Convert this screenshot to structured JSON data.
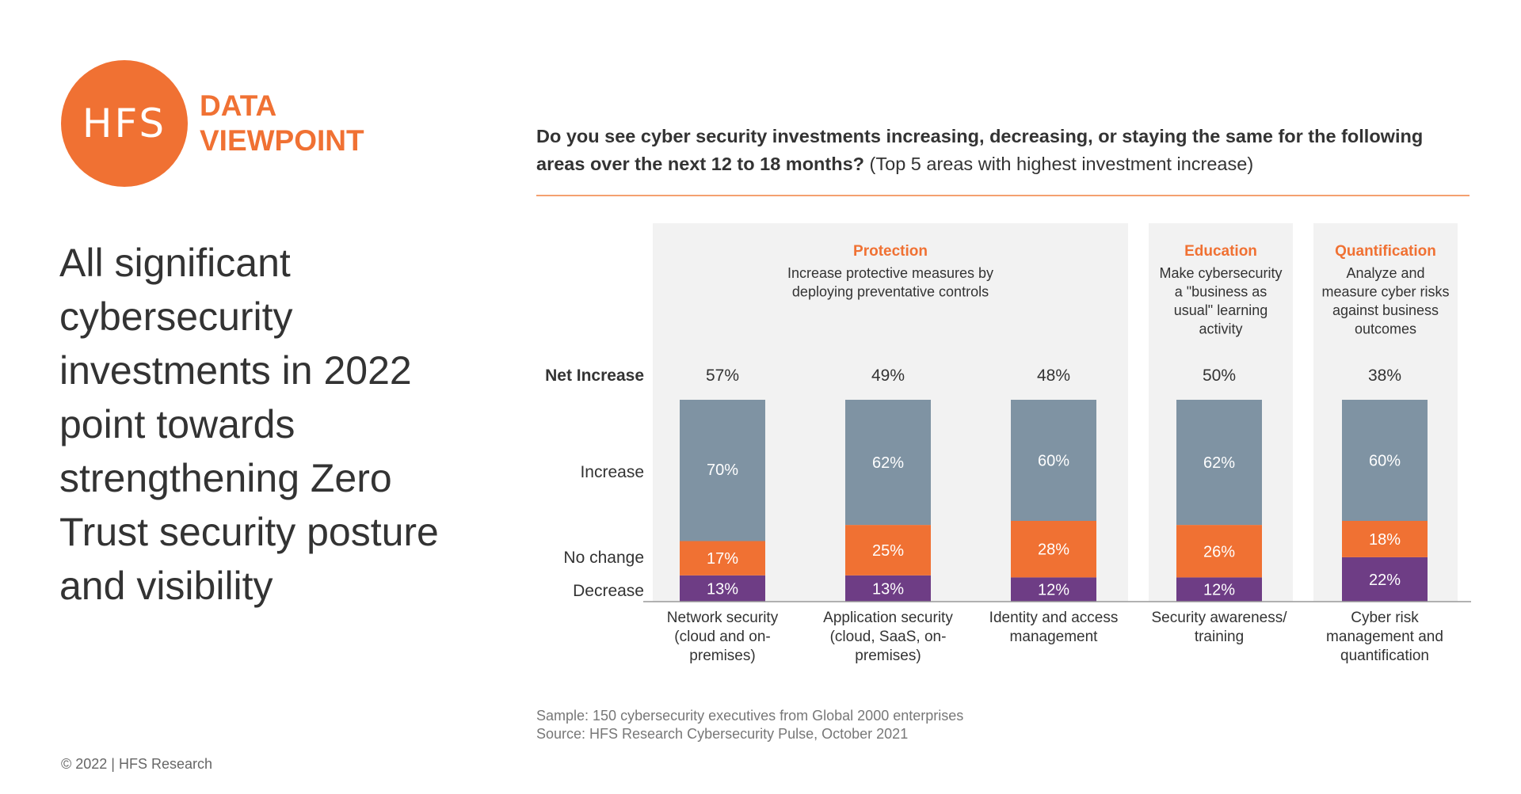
{
  "logo": {
    "mark": "HFS",
    "line1": "DATA",
    "line2": "VIEWPOINT"
  },
  "headline": "All significant cybersecurity investments in 2022 point towards strengthening Zero Trust security posture and visibility",
  "copyright": "© 2022 | HFS Research",
  "question": {
    "bold": "Do you see cyber security investments increasing, decreasing, or staying the same for the following areas over the next 12 to 18 months?",
    "normal": "(Top 5 areas with highest investment increase)"
  },
  "notes": {
    "sample": "Sample: 150 cybersecurity executives from Global 2000 enterprises",
    "source": "Source: HFS Research Cybersecurity Pulse, October 2021"
  },
  "colors": {
    "accent": "#f07133",
    "increase": "#7f93a3",
    "no_change": "#f07133",
    "decrease": "#6e3d85",
    "panel": "#f2f2f2"
  },
  "chart_data": {
    "type": "bar",
    "stacked": true,
    "categories": [
      "Network security (cloud and on-premises)",
      "Application security (cloud, SaaS, on-premises)",
      "Identity and access management",
      "Security awareness/ training",
      "Cyber risk management and quantification"
    ],
    "category_lines": [
      [
        "Network security",
        "(cloud and on-",
        "premises)"
      ],
      [
        "Application security",
        "(cloud, SaaS, on-",
        "premises)"
      ],
      [
        "Identity and access",
        "management"
      ],
      [
        "Security awareness/",
        "training"
      ],
      [
        "Cyber risk",
        "management and",
        "quantification"
      ]
    ],
    "series": [
      {
        "name": "Decrease",
        "values": [
          13,
          13,
          12,
          12,
          22
        ],
        "labels": [
          "13%",
          "13%",
          "12%",
          "12%",
          "22%"
        ]
      },
      {
        "name": "No change",
        "values": [
          17,
          25,
          28,
          26,
          18
        ],
        "labels": [
          "17%",
          "25%",
          "28%",
          "26%",
          "18%"
        ]
      },
      {
        "name": "Increase",
        "values": [
          70,
          62,
          60,
          62,
          60
        ],
        "labels": [
          "70%",
          "62%",
          "60%",
          "62%",
          "60%"
        ]
      }
    ],
    "net_increase": {
      "label": "Net Increase",
      "values": [
        "57%",
        "49%",
        "48%",
        "50%",
        "38%"
      ]
    },
    "groups": [
      {
        "title": "Protection",
        "desc_lines": [
          "Increase protective measures by",
          "deploying preventative controls"
        ],
        "categories": [
          0,
          1,
          2
        ]
      },
      {
        "title": "Education",
        "desc_lines": [
          "Make cybersecurity",
          "a \"business as",
          "usual\" learning",
          "activity"
        ],
        "categories": [
          3
        ]
      },
      {
        "title": "Quantification",
        "desc_lines": [
          "Analyze and",
          "measure cyber risks",
          "against business",
          "outcomes"
        ],
        "categories": [
          4
        ]
      }
    ],
    "ylim": [
      0,
      100
    ]
  }
}
